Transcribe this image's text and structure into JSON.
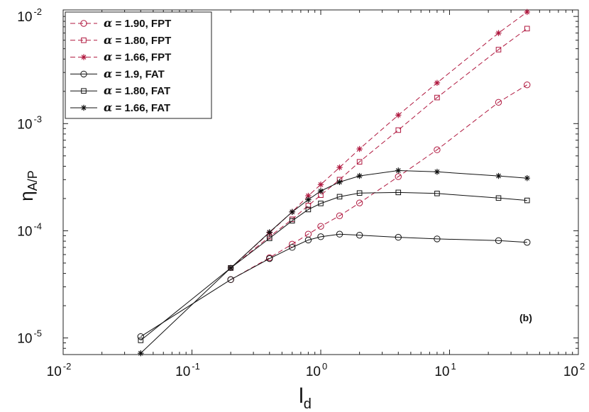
{
  "chart_data": {
    "type": "line",
    "xscale": "log",
    "yscale": "log",
    "xlim": [
      0.01,
      100
    ],
    "ylim": [
      7e-06,
      0.0115
    ],
    "xlabel": "l",
    "xlabel_sub": "d",
    "ylabel": "η",
    "ylabel_sub": "A/P",
    "panel_label": "(b)",
    "legend_position": "top-left",
    "x_ticks": [
      {
        "base": "10",
        "exp": "-2",
        "value": 0.01
      },
      {
        "base": "10",
        "exp": "-1",
        "value": 0.1
      },
      {
        "base": "10",
        "exp": "0",
        "value": 1
      },
      {
        "base": "10",
        "exp": "1",
        "value": 10
      },
      {
        "base": "10",
        "exp": "2",
        "value": 100
      }
    ],
    "y_ticks": [
      {
        "base": "10",
        "exp": "-5",
        "value": 1e-05
      },
      {
        "base": "10",
        "exp": "-4",
        "value": 0.0001
      },
      {
        "base": "10",
        "exp": "-3",
        "value": 0.001
      },
      {
        "base": "10",
        "exp": "-2",
        "value": 0.01
      }
    ],
    "series": [
      {
        "name": "α = 1.90, FPT",
        "alpha_symbol": "α",
        "label_rest": " = 1.90, FPT",
        "marker": "circle",
        "color": "#b0183f",
        "dash": true,
        "x": [
          0.2,
          0.4,
          0.6,
          0.8,
          1.0,
          1.4,
          2,
          4,
          8,
          24,
          40
        ],
        "y": [
          3.5e-05,
          5.6e-05,
          7.5e-05,
          9.3e-05,
          0.00011,
          0.000138,
          0.000182,
          0.00032,
          0.00057,
          0.00158,
          0.0023
        ]
      },
      {
        "name": "α = 1.80, FPT",
        "alpha_symbol": "α",
        "label_rest": " = 1.80, FPT",
        "marker": "square",
        "color": "#b0183f",
        "dash": true,
        "x": [
          0.2,
          0.4,
          0.6,
          0.8,
          1.0,
          1.4,
          2,
          4,
          8,
          24,
          40
        ],
        "y": [
          4.5e-05,
          8.8e-05,
          0.000128,
          0.000172,
          0.000215,
          0.0003,
          0.00044,
          0.00087,
          0.00175,
          0.0049,
          0.0077
        ]
      },
      {
        "name": "α = 1.66, FPT",
        "alpha_symbol": "α",
        "label_rest": " = 1.66, FPT",
        "marker": "star",
        "color": "#b0183f",
        "dash": true,
        "x": [
          0.2,
          0.4,
          0.6,
          0.8,
          1.0,
          1.4,
          2,
          4,
          8,
          24,
          40
        ],
        "y": [
          4.5e-05,
          9.6e-05,
          0.00015,
          0.000212,
          0.00027,
          0.00039,
          0.00058,
          0.0012,
          0.0024,
          0.007,
          0.011
        ]
      },
      {
        "name": "α = 1.9, FAT",
        "alpha_symbol": "α",
        "label_rest": " = 1.9, FAT",
        "marker": "circle",
        "color": "#111111",
        "dash": false,
        "x": [
          0.04,
          0.2,
          0.4,
          0.6,
          0.8,
          1.0,
          1.4,
          2,
          4,
          8,
          24,
          40
        ],
        "y": [
          1.03e-05,
          3.5e-05,
          5.5e-05,
          7e-05,
          8.2e-05,
          8.8e-05,
          9.3e-05,
          9.1e-05,
          8.7e-05,
          8.4e-05,
          8.1e-05,
          7.8e-05
        ]
      },
      {
        "name": "α = 1.80, FAT",
        "alpha_symbol": "α",
        "label_rest": " = 1.80, FAT",
        "marker": "square",
        "color": "#111111",
        "dash": false,
        "x": [
          0.04,
          0.2,
          0.4,
          0.6,
          0.8,
          1.0,
          1.4,
          2,
          4,
          8,
          24,
          40
        ],
        "y": [
          9.5e-06,
          4.5e-05,
          8.5e-05,
          0.000124,
          0.000158,
          0.00018,
          0.000208,
          0.000225,
          0.000228,
          0.000223,
          0.000202,
          0.000192
        ]
      },
      {
        "name": "α = 1.66, FAT",
        "alpha_symbol": "α",
        "label_rest": " = 1.66, FAT",
        "marker": "star",
        "color": "#111111",
        "dash": false,
        "x": [
          0.04,
          0.2,
          0.4,
          0.6,
          0.8,
          1.0,
          1.4,
          2,
          4,
          8,
          24,
          40
        ],
        "y": [
          7.2e-06,
          4.5e-05,
          9.7e-05,
          0.00015,
          0.000195,
          0.000235,
          0.000285,
          0.000325,
          0.000365,
          0.000355,
          0.000325,
          0.00031
        ]
      }
    ]
  }
}
